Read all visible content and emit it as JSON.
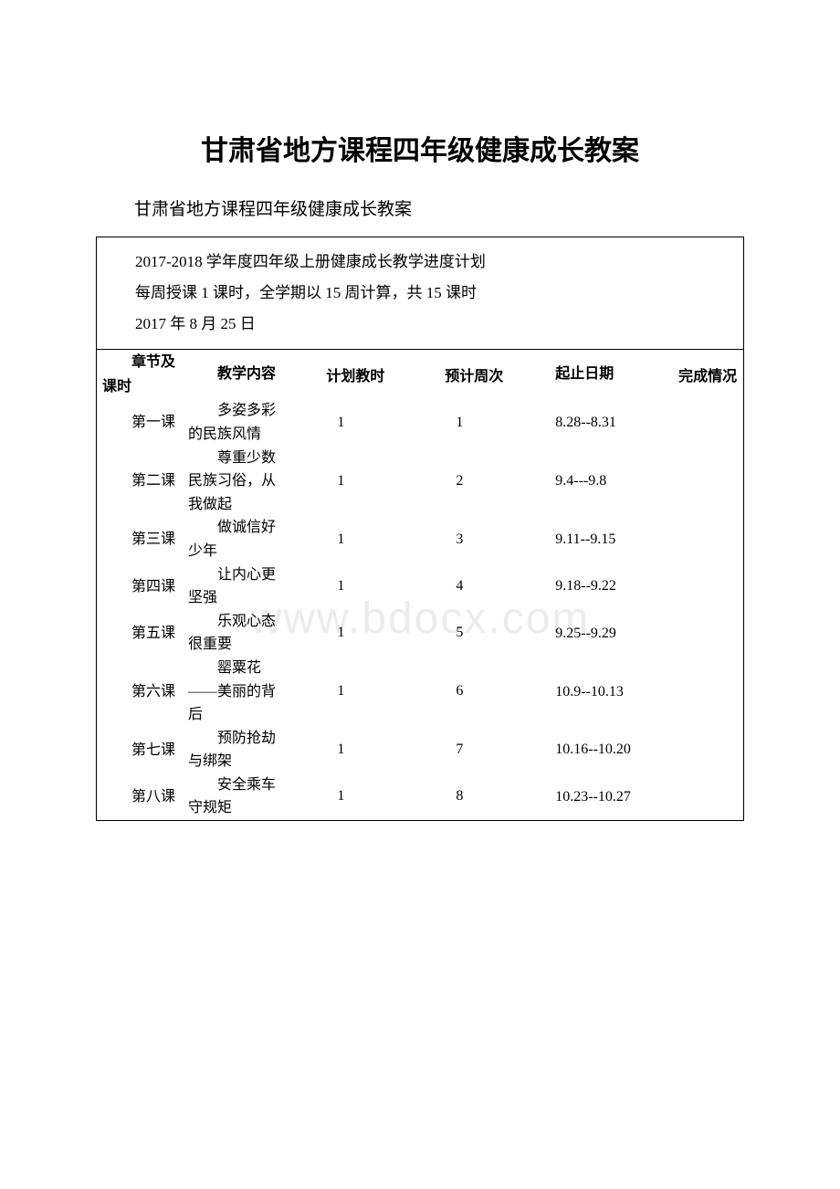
{
  "title": "甘肃省地方课程四年级健康成长教案",
  "subtitle": "甘肃省地方课程四年级健康成长教案",
  "info_line1": "2017-2018 学年度四年级上册健康成长教学进度计划",
  "info_line2": "每周授课 1 课时，全学期以 15 周计算，共 15 课时",
  "info_line3": "2017 年 8 月 25 日",
  "watermark": "www.bdocx.com",
  "headers": {
    "chapter": "章节及课时",
    "content": "教学内容",
    "hours": "计划教时",
    "week": "预计周次",
    "dates": "起止日期",
    "status": "完成情况"
  },
  "rows": [
    {
      "chapter": "第一课",
      "content": "多姿多彩的民族风情",
      "hours": "1",
      "week": "1",
      "dates": "8.28--8.31",
      "status": ""
    },
    {
      "chapter": "第二课",
      "content": "尊重少数民族习俗，从我做起",
      "hours": "1",
      "week": "2",
      "dates": "9.4---9.8",
      "status": ""
    },
    {
      "chapter": "第三课",
      "content": "做诚信好少年",
      "hours": "1",
      "week": "3",
      "dates": "9.11--9.15",
      "status": ""
    },
    {
      "chapter": "第四课",
      "content": "让内心更坚强",
      "hours": "1",
      "week": "4",
      "dates": "9.18--9.22",
      "status": ""
    },
    {
      "chapter": "第五课",
      "content": "乐观心态很重要",
      "hours": "1",
      "week": "5",
      "dates": "9.25--9.29",
      "status": ""
    },
    {
      "chapter": "第六课",
      "content": "罂粟花——美丽的背后",
      "hours": "1",
      "week": "6",
      "dates": "10.9--10.13",
      "status": ""
    },
    {
      "chapter": "第七课",
      "content": "预防抢劫与绑架",
      "hours": "1",
      "week": "7",
      "dates": "10.16--10.20",
      "status": ""
    },
    {
      "chapter": "第八课",
      "content": "安全乘车守规矩",
      "hours": "1",
      "week": "8",
      "dates": "10.23--10.27",
      "status": ""
    }
  ]
}
